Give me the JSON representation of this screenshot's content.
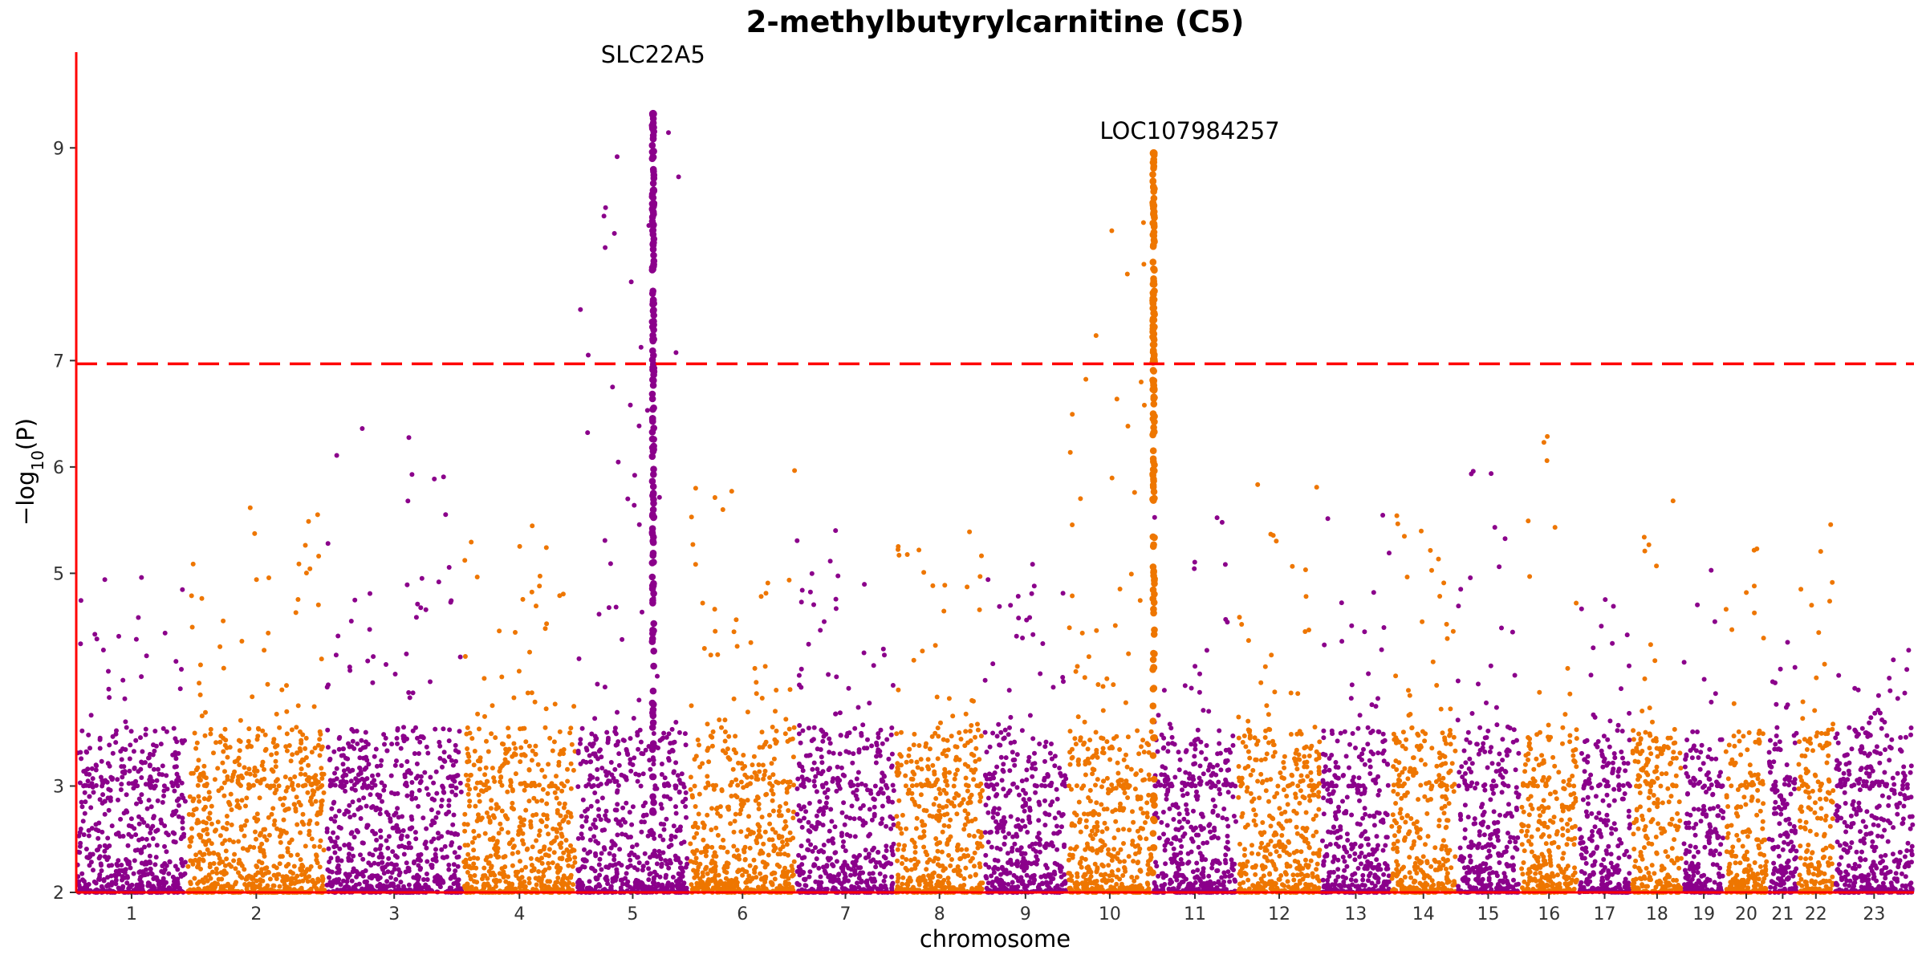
{
  "chart_data": {
    "type": "scatter",
    "title": "2-methylbutyrylcarnitine (C5)",
    "xlabel": "chromosome",
    "ylabel": "−log10(P)",
    "ylim": [
      2,
      9.9
    ],
    "yticks": [
      2,
      3,
      5,
      6,
      7,
      9
    ],
    "threshold": 6.97,
    "colors": {
      "odd": "#8b008b",
      "even": "#ee7600",
      "axis": "#ff0000",
      "threshold": "#ff0000"
    },
    "chromosomes": [
      {
        "label": "1",
        "center": 1.32,
        "start": 0.0,
        "end": 1.93,
        "peak": 5.2
      },
      {
        "label": "2",
        "center": 5.13,
        "start": 1.93,
        "end": 4.35,
        "peak": 5.8
      },
      {
        "label": "3",
        "center": 8.47,
        "start": 4.35,
        "end": 6.74,
        "peak": 6.4
      },
      {
        "label": "4",
        "center": 11.44,
        "start": 6.74,
        "end": 8.72,
        "peak": 5.5
      },
      {
        "label": "5",
        "center": 14.32,
        "start": 8.72,
        "end": 10.69,
        "peak": 9.3
      },
      {
        "label": "6",
        "center": 16.91,
        "start": 10.69,
        "end": 12.55,
        "peak": 6.1
      },
      {
        "label": "7",
        "center": 19.39,
        "start": 12.55,
        "end": 14.28,
        "peak": 5.5
      },
      {
        "label": "8",
        "center": 21.7,
        "start": 14.28,
        "end": 15.83,
        "peak": 5.9
      },
      {
        "label": "9",
        "center": 24.07,
        "start": 15.83,
        "end": 17.28,
        "peak": 5.2
      },
      {
        "label": "10",
        "center": 25.94,
        "start": 17.28,
        "end": 18.77,
        "peak": 8.95
      },
      {
        "label": "11",
        "center": 28.06,
        "start": 18.77,
        "end": 20.25,
        "peak": 5.6
      },
      {
        "label": "12",
        "center": 30.11,
        "start": 20.25,
        "end": 21.71,
        "peak": 5.9
      },
      {
        "label": "13",
        "center": 32.15,
        "start": 21.71,
        "end": 22.92,
        "peak": 5.6
      },
      {
        "label": "14",
        "center": 33.83,
        "start": 22.92,
        "end": 24.07,
        "peak": 5.7
      },
      {
        "label": "15",
        "center": 35.47,
        "start": 24.07,
        "end": 25.18,
        "peak": 6.05
      },
      {
        "label": "16",
        "center": 36.83,
        "start": 25.18,
        "end": 26.19,
        "peak": 6.4
      },
      {
        "label": "17",
        "center": 38.11,
        "start": 26.19,
        "end": 27.12,
        "peak": 5.65
      },
      {
        "label": "18",
        "center": 39.42,
        "start": 27.12,
        "end": 28.02,
        "peak": 5.75
      },
      {
        "label": "19",
        "center": 40.51,
        "start": 28.02,
        "end": 28.75,
        "peak": 5.1
      },
      {
        "label": "20",
        "center": 41.53,
        "start": 28.75,
        "end": 29.5,
        "peak": 5.6
      },
      {
        "label": "21",
        "center": 42.52,
        "start": 29.5,
        "end": 30.02,
        "peak": 5.35
      },
      {
        "label": "22",
        "center": 43.26,
        "start": 30.02,
        "end": 30.66,
        "peak": 5.7
      },
      {
        "label": "23",
        "center": 44.84,
        "start": 30.66,
        "end": 32.05,
        "peak": 4.3
      }
    ],
    "xlim": [
      0,
      32.05
    ],
    "hits": [
      {
        "label": "SLC22A5",
        "x": 10.06,
        "peak": 9.32,
        "chrom_index": 4
      },
      {
        "label": "LOC107984257",
        "x": 18.79,
        "peak": 8.95,
        "chrom_index": 9
      }
    ]
  }
}
